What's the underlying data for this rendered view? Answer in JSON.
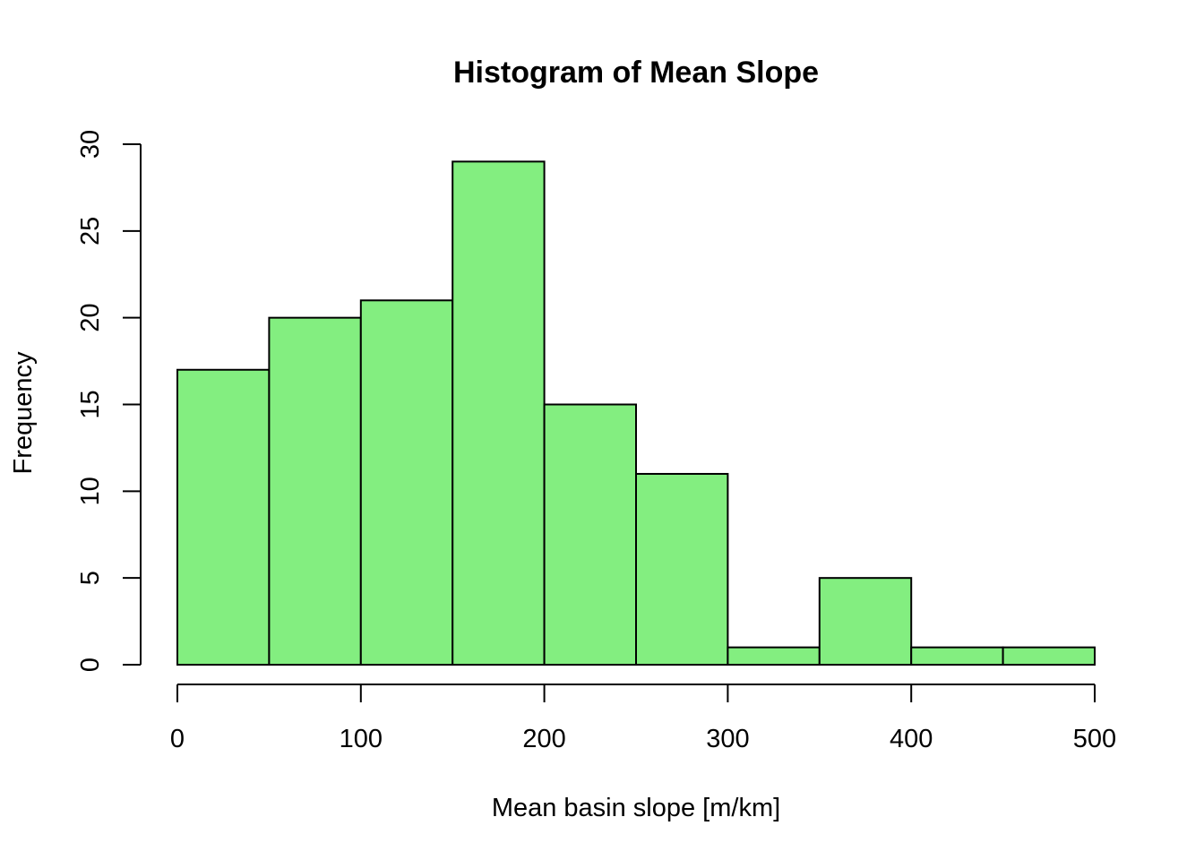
{
  "chart_data": {
    "type": "bar",
    "title": "Histogram of Mean Slope",
    "xlabel": "Mean basin slope [m/km]",
    "ylabel": "Frequency",
    "bin_edges": [
      0,
      50,
      100,
      150,
      200,
      250,
      300,
      350,
      400,
      450,
      500
    ],
    "values": [
      17,
      20,
      21,
      29,
      15,
      11,
      1,
      5,
      1,
      1
    ],
    "xlim": [
      0,
      500
    ],
    "ylim": [
      0,
      30
    ],
    "xticks": [
      "0",
      "100",
      "200",
      "300",
      "400",
      "500"
    ],
    "yticks": [
      "0",
      "5",
      "10",
      "15",
      "20",
      "25",
      "30"
    ],
    "bar_color": "#83ee80",
    "grid": false
  }
}
